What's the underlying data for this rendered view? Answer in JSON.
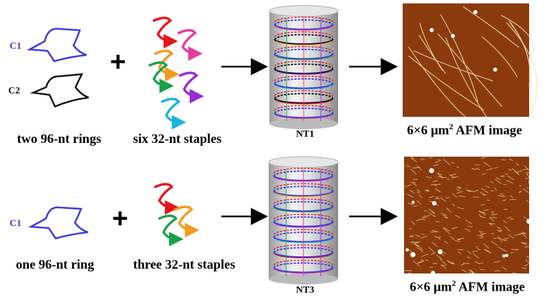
{
  "top_row": {
    "ring_labels": [
      "C1",
      "C2"
    ],
    "rings_caption": "two 96-nt rings",
    "plus": "+",
    "staples_caption": "six 32-nt staples",
    "structure_label": "NT1",
    "afm_caption": "6×6 μm",
    "afm_caption_sup": "2",
    "afm_caption_tail": " AFM image"
  },
  "bottom_row": {
    "ring_labels": [
      "C1"
    ],
    "rings_caption": "one 96-nt ring",
    "plus": "+",
    "staples_caption": "three 32-nt staples",
    "structure_label": "NT3",
    "afm_caption": "6×6 μm",
    "afm_caption_sup": "2",
    "afm_caption_tail": " AFM image"
  },
  "colors": {
    "c1": "#3b3bdc",
    "c2": "#111111",
    "staples": [
      "#e8141c",
      "#e83ca0",
      "#f59a1c",
      "#1aa04a",
      "#9a2ad6",
      "#1cb4dc"
    ],
    "afm_background": "#8a3a0c",
    "afm_fiber": "#f4e0b0"
  }
}
